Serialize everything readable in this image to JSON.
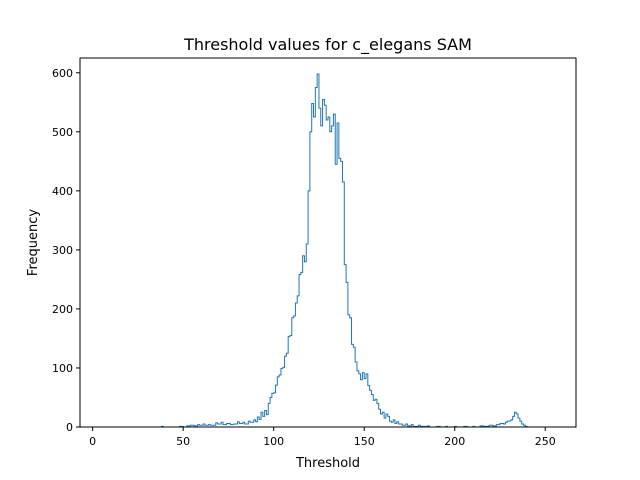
{
  "chart_data": {
    "type": "histogram",
    "title": "Threshold values for c_elegans SAM",
    "xlabel": "Threshold",
    "ylabel": "Frequency",
    "xlim": [
      -7,
      267
    ],
    "ylim": [
      0,
      625
    ],
    "xticks": [
      0,
      50,
      100,
      150,
      200,
      250
    ],
    "xtick_labels": [
      "0",
      "50",
      "100",
      "150",
      "200",
      "250"
    ],
    "yticks": [
      0,
      100,
      200,
      300,
      400,
      500,
      600
    ],
    "ytick_labels": [
      "0",
      "100",
      "200",
      "300",
      "400",
      "500",
      "600"
    ],
    "grid": false,
    "bin_width": 1,
    "line_color": "#1f77b4",
    "step_points": [
      [
        0,
        0
      ],
      [
        38,
        0
      ],
      [
        38,
        1
      ],
      [
        39,
        1
      ],
      [
        39,
        0
      ],
      [
        48,
        0
      ],
      [
        48,
        1
      ],
      [
        50,
        1
      ],
      [
        50,
        0
      ],
      [
        52,
        0
      ],
      [
        52,
        2
      ],
      [
        54,
        2
      ],
      [
        54,
        3
      ],
      [
        56,
        3
      ],
      [
        56,
        2
      ],
      [
        58,
        2
      ],
      [
        58,
        4
      ],
      [
        59,
        4
      ],
      [
        59,
        3
      ],
      [
        61,
        3
      ],
      [
        61,
        5
      ],
      [
        62,
        5
      ],
      [
        62,
        3
      ],
      [
        64,
        3
      ],
      [
        64,
        4
      ],
      [
        65,
        4
      ],
      [
        65,
        3
      ],
      [
        68,
        3
      ],
      [
        68,
        7
      ],
      [
        69,
        7
      ],
      [
        69,
        5
      ],
      [
        71,
        5
      ],
      [
        71,
        8
      ],
      [
        72,
        8
      ],
      [
        72,
        4
      ],
      [
        74,
        4
      ],
      [
        74,
        6
      ],
      [
        76,
        6
      ],
      [
        76,
        4
      ],
      [
        78,
        4
      ],
      [
        78,
        5
      ],
      [
        80,
        5
      ],
      [
        80,
        9
      ],
      [
        81,
        9
      ],
      [
        81,
        6
      ],
      [
        83,
        6
      ],
      [
        83,
        8
      ],
      [
        84,
        8
      ],
      [
        84,
        5
      ],
      [
        86,
        5
      ],
      [
        86,
        10
      ],
      [
        87,
        10
      ],
      [
        87,
        8
      ],
      [
        89,
        8
      ],
      [
        89,
        12
      ],
      [
        90,
        12
      ],
      [
        90,
        9
      ],
      [
        91,
        9
      ],
      [
        91,
        17
      ],
      [
        92,
        17
      ],
      [
        92,
        13
      ],
      [
        93,
        13
      ],
      [
        93,
        25
      ],
      [
        94,
        25
      ],
      [
        94,
        18
      ],
      [
        95,
        18
      ],
      [
        95,
        28
      ],
      [
        96,
        28
      ],
      [
        96,
        21
      ],
      [
        97,
        21
      ],
      [
        97,
        40
      ],
      [
        98,
        40
      ],
      [
        98,
        50
      ],
      [
        99,
        50
      ],
      [
        99,
        57
      ],
      [
        100,
        57
      ],
      [
        100,
        58
      ],
      [
        101,
        58
      ],
      [
        101,
        71
      ],
      [
        102,
        71
      ],
      [
        102,
        85
      ],
      [
        103,
        85
      ],
      [
        103,
        88
      ],
      [
        104,
        88
      ],
      [
        104,
        99
      ],
      [
        105,
        99
      ],
      [
        105,
        101
      ],
      [
        106,
        101
      ],
      [
        106,
        120
      ],
      [
        107,
        120
      ],
      [
        107,
        125
      ],
      [
        108,
        125
      ],
      [
        108,
        153
      ],
      [
        109,
        153
      ],
      [
        109,
        155
      ],
      [
        110,
        155
      ],
      [
        110,
        185
      ],
      [
        111,
        185
      ],
      [
        111,
        188
      ],
      [
        112,
        188
      ],
      [
        112,
        210
      ],
      [
        113,
        210
      ],
      [
        113,
        222
      ],
      [
        114,
        222
      ],
      [
        114,
        258
      ],
      [
        115,
        258
      ],
      [
        115,
        262
      ],
      [
        116,
        262
      ],
      [
        116,
        290
      ],
      [
        117,
        290
      ],
      [
        117,
        280
      ],
      [
        118,
        280
      ],
      [
        118,
        310
      ],
      [
        119,
        310
      ],
      [
        119,
        400
      ],
      [
        120,
        400
      ],
      [
        120,
        500
      ],
      [
        121,
        500
      ],
      [
        121,
        548
      ],
      [
        122,
        548
      ],
      [
        122,
        525
      ],
      [
        123,
        525
      ],
      [
        123,
        575
      ],
      [
        124,
        575
      ],
      [
        124,
        598
      ],
      [
        125,
        598
      ],
      [
        125,
        540
      ],
      [
        126,
        540
      ],
      [
        126,
        510
      ],
      [
        127,
        510
      ],
      [
        127,
        555
      ],
      [
        128,
        555
      ],
      [
        128,
        545
      ],
      [
        129,
        545
      ],
      [
        129,
        520
      ],
      [
        130,
        520
      ],
      [
        130,
        525
      ],
      [
        131,
        525
      ],
      [
        131,
        500
      ],
      [
        132,
        500
      ],
      [
        132,
        510
      ],
      [
        133,
        510
      ],
      [
        133,
        530
      ],
      [
        134,
        530
      ],
      [
        134,
        445
      ],
      [
        135,
        445
      ],
      [
        135,
        515
      ],
      [
        136,
        515
      ],
      [
        136,
        455
      ],
      [
        137,
        455
      ],
      [
        137,
        450
      ],
      [
        138,
        450
      ],
      [
        138,
        415
      ],
      [
        139,
        415
      ],
      [
        139,
        275
      ],
      [
        140,
        275
      ],
      [
        140,
        245
      ],
      [
        141,
        245
      ],
      [
        141,
        190
      ],
      [
        142,
        190
      ],
      [
        142,
        185
      ],
      [
        143,
        185
      ],
      [
        143,
        140
      ],
      [
        144,
        140
      ],
      [
        144,
        135
      ],
      [
        145,
        135
      ],
      [
        145,
        110
      ],
      [
        146,
        110
      ],
      [
        146,
        95
      ],
      [
        147,
        95
      ],
      [
        147,
        90
      ],
      [
        148,
        90
      ],
      [
        148,
        80
      ],
      [
        149,
        80
      ],
      [
        149,
        92
      ],
      [
        150,
        92
      ],
      [
        150,
        82
      ],
      [
        151,
        82
      ],
      [
        151,
        90
      ],
      [
        152,
        90
      ],
      [
        152,
        70
      ],
      [
        153,
        70
      ],
      [
        153,
        62
      ],
      [
        154,
        62
      ],
      [
        154,
        55
      ],
      [
        155,
        55
      ],
      [
        155,
        45
      ],
      [
        156,
        45
      ],
      [
        156,
        47
      ],
      [
        157,
        47
      ],
      [
        157,
        40
      ],
      [
        158,
        40
      ],
      [
        158,
        30
      ],
      [
        159,
        30
      ],
      [
        159,
        22
      ],
      [
        160,
        22
      ],
      [
        160,
        25
      ],
      [
        161,
        25
      ],
      [
        161,
        15
      ],
      [
        162,
        15
      ],
      [
        162,
        22
      ],
      [
        163,
        22
      ],
      [
        163,
        18
      ],
      [
        164,
        18
      ],
      [
        164,
        10
      ],
      [
        165,
        10
      ],
      [
        165,
        8
      ],
      [
        166,
        8
      ],
      [
        166,
        12
      ],
      [
        167,
        12
      ],
      [
        167,
        6
      ],
      [
        168,
        6
      ],
      [
        168,
        9
      ],
      [
        169,
        9
      ],
      [
        169,
        5
      ],
      [
        171,
        5
      ],
      [
        171,
        3
      ],
      [
        173,
        3
      ],
      [
        173,
        5
      ],
      [
        174,
        5
      ],
      [
        174,
        2
      ],
      [
        176,
        2
      ],
      [
        176,
        4
      ],
      [
        177,
        4
      ],
      [
        177,
        1
      ],
      [
        180,
        1
      ],
      [
        180,
        3
      ],
      [
        181,
        3
      ],
      [
        181,
        1
      ],
      [
        185,
        1
      ],
      [
        185,
        2
      ],
      [
        186,
        2
      ],
      [
        186,
        0
      ],
      [
        190,
        0
      ],
      [
        190,
        1
      ],
      [
        192,
        1
      ],
      [
        192,
        0
      ],
      [
        195,
        0
      ],
      [
        195,
        1
      ],
      [
        196,
        1
      ],
      [
        196,
        0
      ],
      [
        200,
        0
      ],
      [
        200,
        1
      ],
      [
        201,
        1
      ],
      [
        201,
        0
      ],
      [
        205,
        0
      ],
      [
        205,
        1
      ],
      [
        207,
        1
      ],
      [
        207,
        0
      ],
      [
        210,
        0
      ],
      [
        210,
        1
      ],
      [
        211,
        1
      ],
      [
        211,
        0
      ],
      [
        214,
        0
      ],
      [
        214,
        2
      ],
      [
        216,
        2
      ],
      [
        216,
        1
      ],
      [
        219,
        1
      ],
      [
        219,
        3
      ],
      [
        221,
        3
      ],
      [
        221,
        2
      ],
      [
        223,
        2
      ],
      [
        223,
        4
      ],
      [
        225,
        4
      ],
      [
        225,
        6
      ],
      [
        227,
        6
      ],
      [
        227,
        5
      ],
      [
        228,
        5
      ],
      [
        228,
        8
      ],
      [
        229,
        8
      ],
      [
        229,
        10
      ],
      [
        231,
        10
      ],
      [
        231,
        12
      ],
      [
        232,
        12
      ],
      [
        232,
        18
      ],
      [
        233,
        18
      ],
      [
        233,
        25
      ],
      [
        234,
        25
      ],
      [
        234,
        22
      ],
      [
        235,
        22
      ],
      [
        235,
        15
      ],
      [
        236,
        15
      ],
      [
        236,
        10
      ],
      [
        237,
        10
      ],
      [
        237,
        5
      ],
      [
        238,
        5
      ],
      [
        238,
        3
      ],
      [
        239,
        3
      ],
      [
        239,
        1
      ],
      [
        240,
        1
      ],
      [
        240,
        0
      ],
      [
        255,
        0
      ]
    ]
  }
}
